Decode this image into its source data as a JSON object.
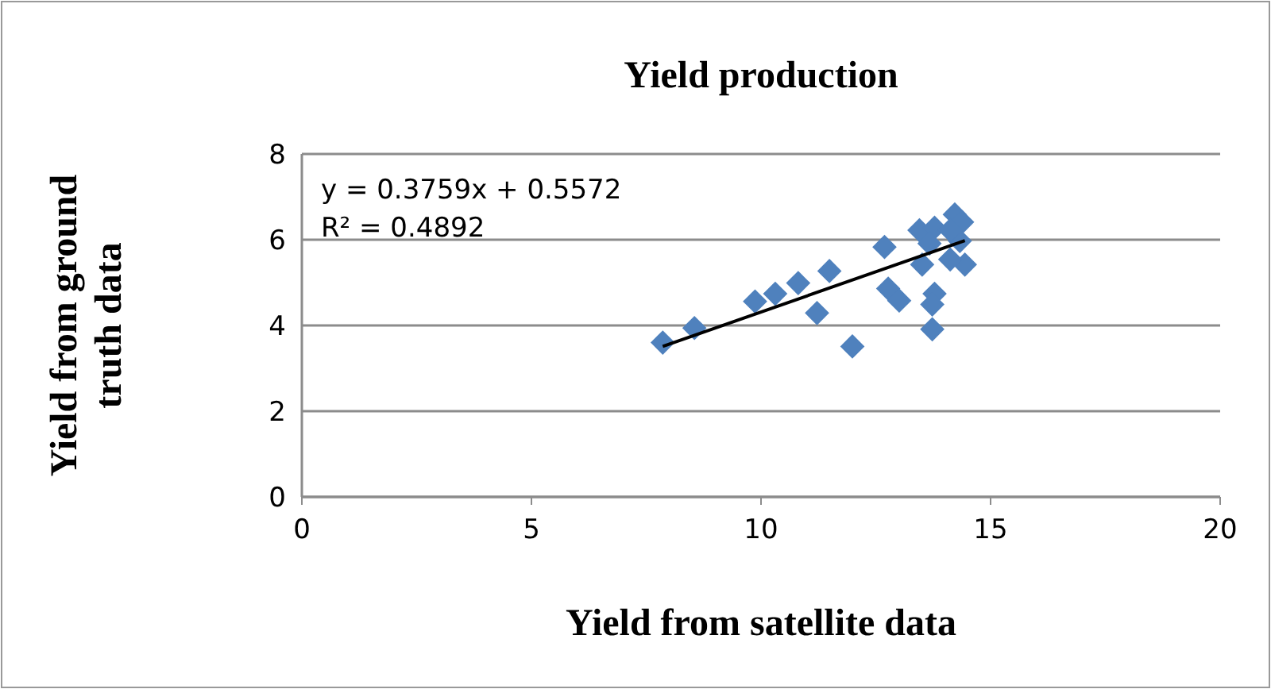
{
  "chart_data": {
    "type": "scatter",
    "title": "Yield production",
    "xlabel": "Yield from satellite data",
    "ylabel": "Yield from ground truth data",
    "xlim": [
      0,
      20
    ],
    "xticks": [
      0,
      5,
      10,
      15,
      20
    ],
    "ylim": [
      0,
      8
    ],
    "yticks": [
      0,
      2,
      4,
      6,
      8
    ],
    "grid": "y",
    "annotations": [
      "y = 0.3759x + 0.5572",
      "R² = 0.4892"
    ],
    "series": [
      {
        "marker": "diamond",
        "color": "#4f81bd",
        "x": [
          7.86,
          8.55,
          9.87,
          10.31,
          10.81,
          11.49,
          11.22,
          11.99,
          12.69,
          12.77,
          13.01,
          13.73,
          13.78,
          13.73,
          13.51,
          13.45,
          13.78,
          14.22,
          14.38,
          14.44,
          14.12,
          14.33,
          13.67,
          14.12
        ],
        "values": [
          3.6,
          3.94,
          4.56,
          4.74,
          4.99,
          5.27,
          4.29,
          3.51,
          5.83,
          4.86,
          4.58,
          3.91,
          4.74,
          4.49,
          5.42,
          6.22,
          6.28,
          6.59,
          6.41,
          5.42,
          5.54,
          5.97,
          5.91,
          6.22
        ]
      },
      {
        "type": "line",
        "color": "#000000",
        "x": [
          7.86,
          14.44
        ],
        "values": [
          3.51,
          5.98
        ]
      }
    ]
  }
}
